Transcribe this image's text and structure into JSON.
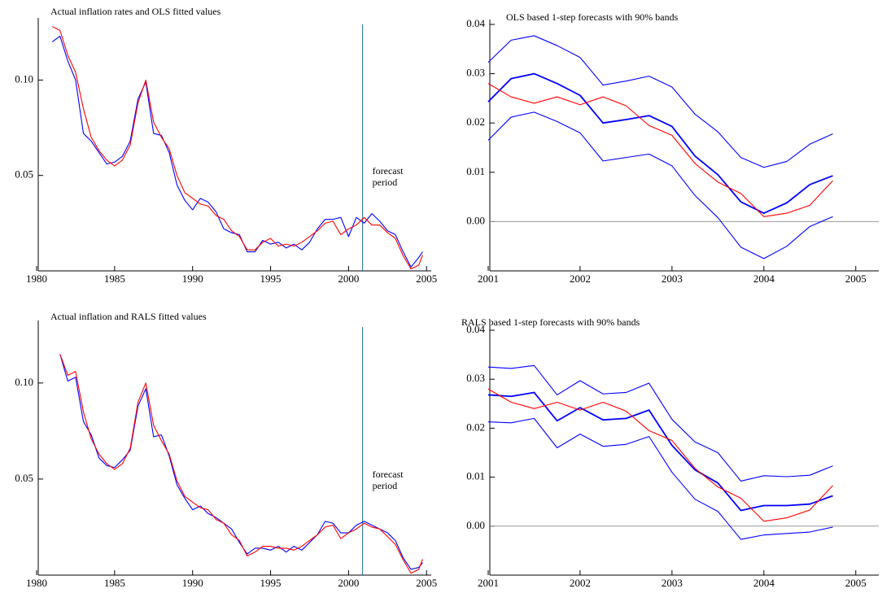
{
  "chart_data": [
    {
      "type": "line",
      "title": "Actual inflation rates and OLS fitted values",
      "x": [
        1981,
        1981.5,
        1982,
        1982.5,
        1983,
        1983.5,
        1984,
        1984.5,
        1985,
        1985.5,
        1986,
        1986.5,
        1987,
        1987.5,
        1988,
        1988.5,
        1989,
        1989.5,
        1990,
        1990.5,
        1991,
        1991.5,
        1992,
        1992.5,
        1993,
        1993.5,
        1994,
        1994.5,
        1995,
        1995.5,
        1996,
        1996.5,
        1997,
        1997.5,
        1998,
        1998.5,
        1999,
        1999.5,
        2000,
        2000.5,
        2001,
        2001.5,
        2002,
        2002.5,
        2003,
        2003.5,
        2004,
        2004.5,
        2004.75
      ],
      "series": [
        {
          "color": "#0000ff",
          "values": [
            0.12,
            0.123,
            0.11,
            0.1,
            0.072,
            0.068,
            0.062,
            0.056,
            0.057,
            0.06,
            0.068,
            0.09,
            0.099,
            0.072,
            0.071,
            0.062,
            0.045,
            0.037,
            0.032,
            0.038,
            0.036,
            0.031,
            0.022,
            0.02,
            0.019,
            0.01,
            0.01,
            0.016,
            0.014,
            0.015,
            0.012,
            0.014,
            0.011,
            0.015,
            0.022,
            0.027,
            0.027,
            0.028,
            0.018,
            0.028,
            0.025,
            0.03,
            0.026,
            0.021,
            0.019,
            0.01,
            0.002,
            0.007,
            0.01
          ]
        },
        {
          "color": "#ff0000",
          "values": [
            0.128,
            0.126,
            0.113,
            0.104,
            0.085,
            0.07,
            0.063,
            0.058,
            0.055,
            0.058,
            0.066,
            0.088,
            0.1,
            0.078,
            0.07,
            0.064,
            0.05,
            0.041,
            0.038,
            0.035,
            0.034,
            0.029,
            0.027,
            0.021,
            0.018,
            0.011,
            0.011,
            0.015,
            0.017,
            0.013,
            0.014,
            0.013,
            0.015,
            0.018,
            0.021,
            0.025,
            0.026,
            0.019,
            0.022,
            0.024,
            0.028,
            0.024,
            0.024,
            0.02,
            0.017,
            0.008,
            0.001,
            0.003,
            0.0083
          ]
        }
      ],
      "xlim": [
        1980,
        2005.3
      ],
      "xticks": [
        1980,
        1985,
        1990,
        1995,
        2000,
        2005
      ],
      "ylim": [
        0,
        0.13
      ],
      "yticks": [
        0.05,
        {
          "value": 0.1,
          "label": "0.10"
        }
      ],
      "forecast_start": 2000.9,
      "annotations": [
        "forecast",
        "period"
      ]
    },
    {
      "type": "line",
      "title": "OLS based 1-step forecasts with 90% bands",
      "x": [
        2001,
        2001.25,
        2001.5,
        2001.75,
        2002,
        2002.25,
        2002.5,
        2002.75,
        2003,
        2003.25,
        2003.5,
        2003.75,
        2004,
        2004.25,
        2004.5,
        2004.75
      ],
      "series": [
        {
          "color": "#0000ff",
          "values": [
            0.0323,
            0.0368,
            0.0377,
            0.0357,
            0.0333,
            0.0277,
            0.0285,
            0.0295,
            0.0273,
            0.0218,
            0.0182,
            0.013,
            0.011,
            0.0122,
            0.0157,
            0.0178
          ]
        },
        {
          "color": "#0000ff",
          "values": [
            0.0165,
            0.0212,
            0.0222,
            0.0203,
            0.018,
            0.0123,
            0.013,
            0.0137,
            0.0113,
            0.0053,
            0.0008,
            -0.0052,
            -0.0075,
            -0.005,
            -0.001,
            0.001
          ]
        },
        {
          "color": "#0000ff",
          "bold": true,
          "values": [
            0.0243,
            0.029,
            0.03,
            0.028,
            0.0256,
            0.02,
            0.0207,
            0.0215,
            0.0193,
            0.0133,
            0.0095,
            0.004,
            0.0017,
            0.0038,
            0.0075,
            0.0093
          ]
        },
        {
          "color": "#ff0000",
          "values": [
            0.028,
            0.0253,
            0.024,
            0.0253,
            0.0237,
            0.0253,
            0.0235,
            0.0195,
            0.0175,
            0.0118,
            0.008,
            0.0057,
            0.001,
            0.0017,
            0.0033,
            0.0083
          ]
        }
      ],
      "xlim": [
        2001,
        2005.25
      ],
      "xticks": [
        2001,
        2002,
        2003,
        2004,
        2005
      ],
      "ylim": [
        -0.01,
        0.04
      ],
      "yticks": [
        {
          "value": 0,
          "label": "0.00"
        },
        0.01,
        0.02,
        0.03,
        0.04
      ],
      "zero_line": true
    },
    {
      "type": "line",
      "title": "Actual inflation and RALS fitted values",
      "x": [
        1981.5,
        1982,
        1982.5,
        1983,
        1983.5,
        1984,
        1984.5,
        1985,
        1985.5,
        1986,
        1986.5,
        1987,
        1987.5,
        1988,
        1988.5,
        1989,
        1989.5,
        1990,
        1990.5,
        1991,
        1991.5,
        1992,
        1992.5,
        1993,
        1993.5,
        1994,
        1994.5,
        1995,
        1995.5,
        1996,
        1996.5,
        1997,
        1997.5,
        1998,
        1998.5,
        1999,
        1999.5,
        2000,
        2000.5,
        2001,
        2001.5,
        2002,
        2002.5,
        2003,
        2003.5,
        2004,
        2004.5,
        2004.75
      ],
      "series": [
        {
          "color": "#0000ff",
          "values": [
            0.115,
            0.101,
            0.103,
            0.08,
            0.073,
            0.061,
            0.057,
            0.056,
            0.06,
            0.065,
            0.088,
            0.097,
            0.072,
            0.073,
            0.062,
            0.047,
            0.04,
            0.034,
            0.036,
            0.032,
            0.03,
            0.027,
            0.024,
            0.017,
            0.011,
            0.014,
            0.014,
            0.013,
            0.015,
            0.012,
            0.015,
            0.013,
            0.017,
            0.021,
            0.028,
            0.027,
            0.022,
            0.022,
            0.026,
            0.028,
            0.026,
            0.024,
            0.022,
            0.018,
            0.009,
            0.003,
            0.004,
            0.0065
          ]
        },
        {
          "color": "#ff0000",
          "values": [
            0.115,
            0.104,
            0.106,
            0.085,
            0.071,
            0.063,
            0.058,
            0.055,
            0.058,
            0.066,
            0.09,
            0.1,
            0.078,
            0.07,
            0.063,
            0.049,
            0.041,
            0.038,
            0.035,
            0.034,
            0.029,
            0.027,
            0.021,
            0.018,
            0.01,
            0.012,
            0.015,
            0.015,
            0.014,
            0.014,
            0.013,
            0.015,
            0.018,
            0.021,
            0.025,
            0.026,
            0.019,
            0.022,
            0.024,
            0.027,
            0.025,
            0.024,
            0.02,
            0.016,
            0.008,
            0.001,
            0.003,
            0.0083
          ]
        }
      ],
      "xlim": [
        1980,
        2005.3
      ],
      "xticks": [
        1980,
        1985,
        1990,
        1995,
        2000,
        2005
      ],
      "ylim": [
        0,
        0.13
      ],
      "yticks": [
        0.05,
        {
          "value": 0.1,
          "label": "0.10"
        }
      ],
      "forecast_start": 2000.9,
      "annotations": [
        "forecast",
        "period"
      ]
    },
    {
      "type": "line",
      "title": "RALS based 1-step forecasts with 90% bands",
      "x": [
        2001,
        2001.25,
        2001.5,
        2001.75,
        2002,
        2002.25,
        2002.5,
        2002.75,
        2003,
        2003.25,
        2003.5,
        2003.75,
        2004,
        2004.25,
        2004.5,
        2004.75
      ],
      "series": [
        {
          "color": "#0000ff",
          "values": [
            0.0325,
            0.0322,
            0.0328,
            0.0268,
            0.0297,
            0.027,
            0.0273,
            0.0292,
            0.0218,
            0.0172,
            0.015,
            0.0092,
            0.0103,
            0.0101,
            0.0104,
            0.0123
          ]
        },
        {
          "color": "#0000ff",
          "values": [
            0.0213,
            0.0211,
            0.022,
            0.016,
            0.0188,
            0.0163,
            0.0167,
            0.0183,
            0.011,
            0.0055,
            0.003,
            -0.0027,
            -0.0018,
            -0.0015,
            -0.0012,
            -0.0002
          ]
        },
        {
          "color": "#0000ff",
          "bold": true,
          "values": [
            0.0268,
            0.0265,
            0.0273,
            0.0215,
            0.0242,
            0.0217,
            0.022,
            0.0237,
            0.0165,
            0.0115,
            0.0088,
            0.0032,
            0.0042,
            0.0042,
            0.0045,
            0.0062
          ]
        },
        {
          "color": "#ff0000",
          "values": [
            0.028,
            0.0253,
            0.024,
            0.0253,
            0.0237,
            0.0253,
            0.0235,
            0.0195,
            0.0175,
            0.0118,
            0.008,
            0.0057,
            0.001,
            0.0017,
            0.0033,
            0.0083
          ]
        }
      ],
      "xlim": [
        2001,
        2005.25
      ],
      "xticks": [
        2001,
        2002,
        2003,
        2004,
        2005
      ],
      "ylim": [
        -0.01,
        0.04
      ],
      "yticks": [
        {
          "value": 0,
          "label": "0.00"
        },
        0.01,
        0.02,
        0.03,
        0.04
      ],
      "zero_line": true
    }
  ]
}
